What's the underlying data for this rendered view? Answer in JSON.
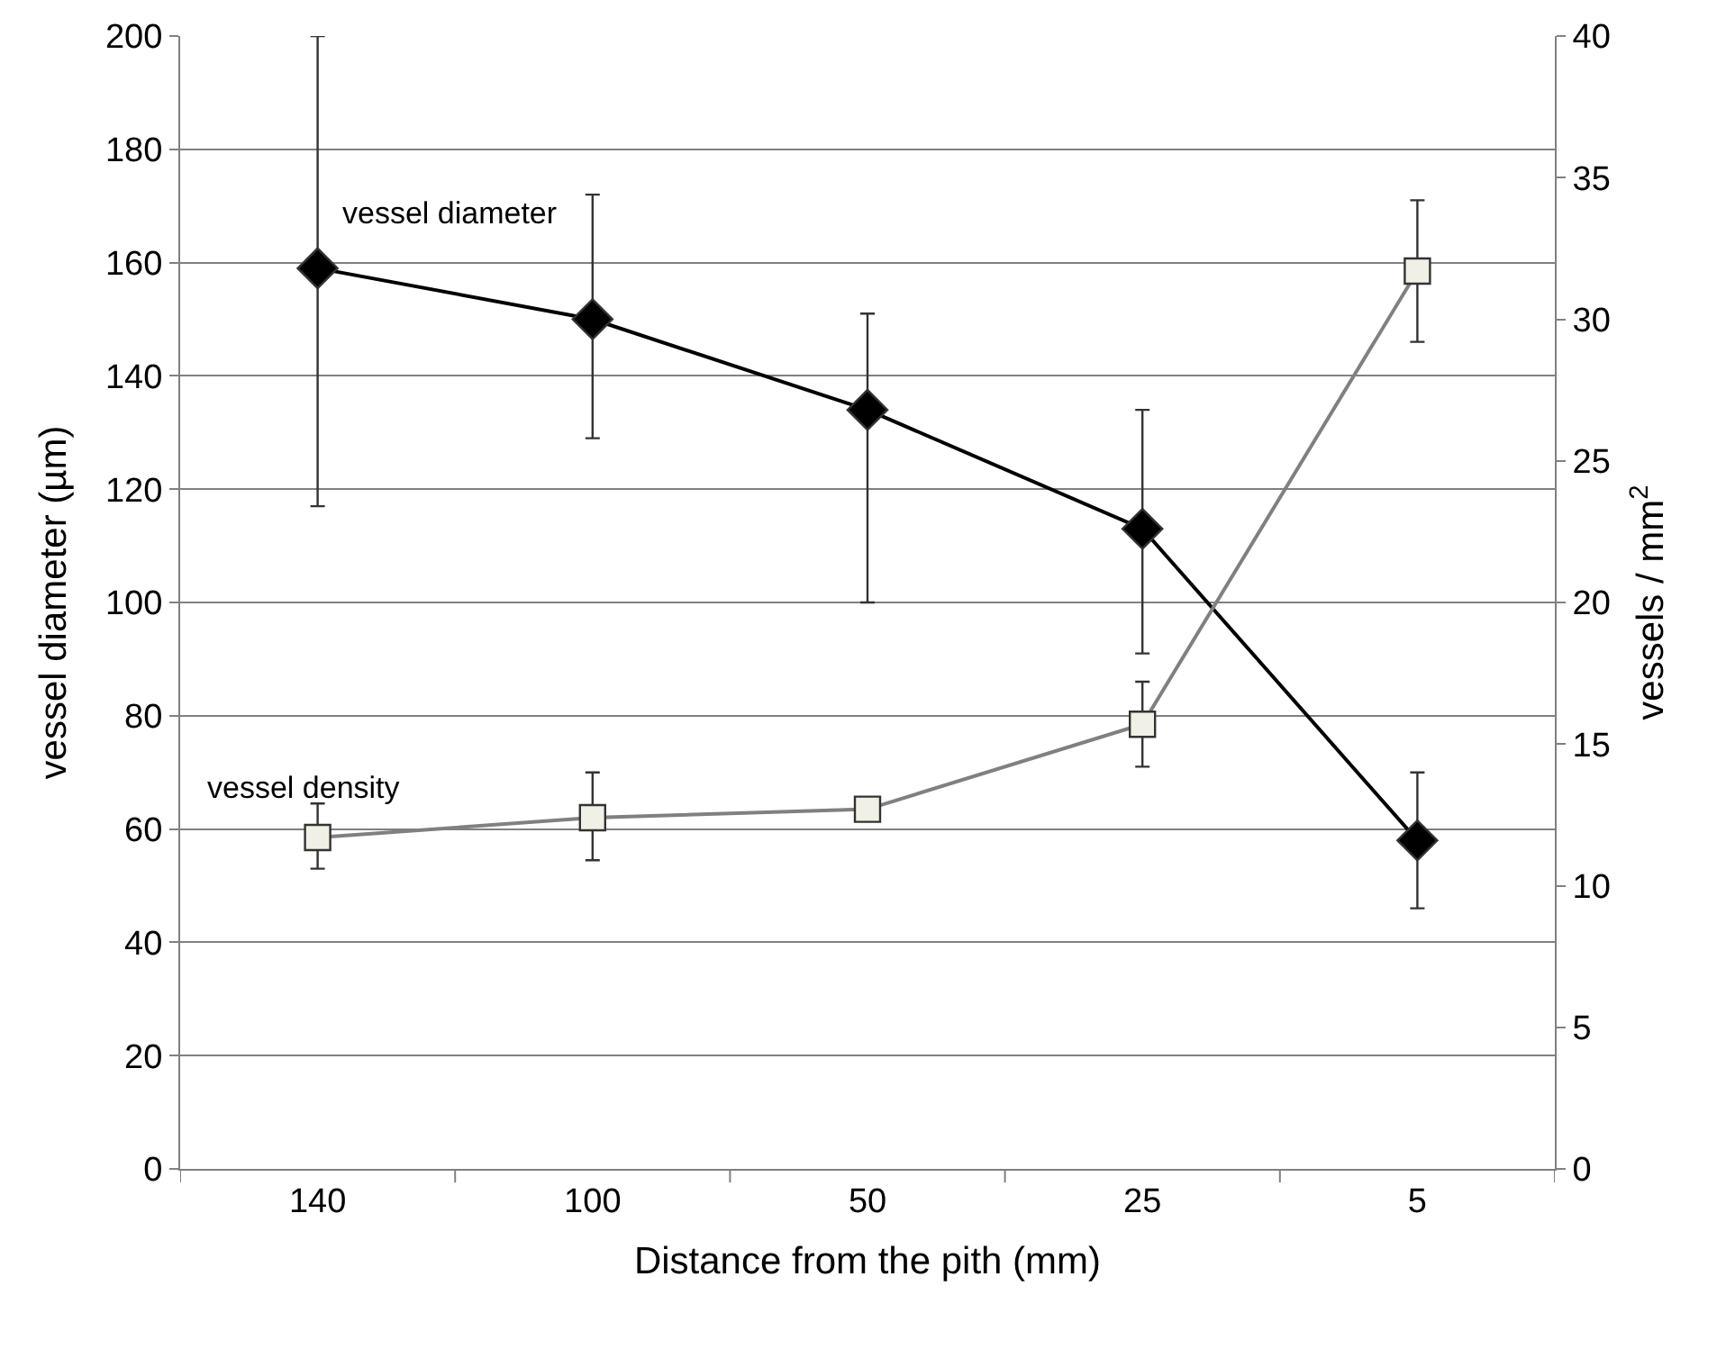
{
  "chart_data": {
    "type": "line",
    "xlabel": "Distance from the pith (mm)",
    "ylabel": "vessel diameter (µm)",
    "y2label": "vessels / mm$^{2}$",
    "categories": [
      "140",
      "100",
      "50",
      "25",
      "5"
    ],
    "series": [
      {
        "name": "vessel diameter",
        "color": "#000000",
        "marker": "diamond",
        "values": [
          159,
          150,
          134,
          113,
          58
        ],
        "errors": [
          [
            117,
            200
          ],
          [
            129,
            172
          ],
          [
            100,
            151
          ],
          [
            91,
            134
          ],
          [
            46,
            70
          ]
        ]
      },
      {
        "name": "vessel density",
        "color": "#f0f0e6",
        "marker": "square",
        "axis": "y2",
        "values": [
          11.7,
          12.4,
          12.7,
          15.7,
          31.7
        ],
        "errors": [
          [
            10.6,
            12.9
          ],
          [
            10.9,
            14.0
          ],
          null,
          [
            14.2,
            17.2
          ],
          [
            29.2,
            34.2
          ]
        ]
      }
    ],
    "ylim": [
      0,
      200
    ],
    "yticks": [
      0,
      20,
      40,
      60,
      80,
      100,
      120,
      140,
      160,
      180,
      200
    ],
    "y2lim": [
      0,
      40
    ],
    "y2ticks": [
      0,
      5,
      10,
      15,
      20,
      25,
      30,
      35,
      40
    ],
    "grid": "y",
    "legend": false
  }
}
